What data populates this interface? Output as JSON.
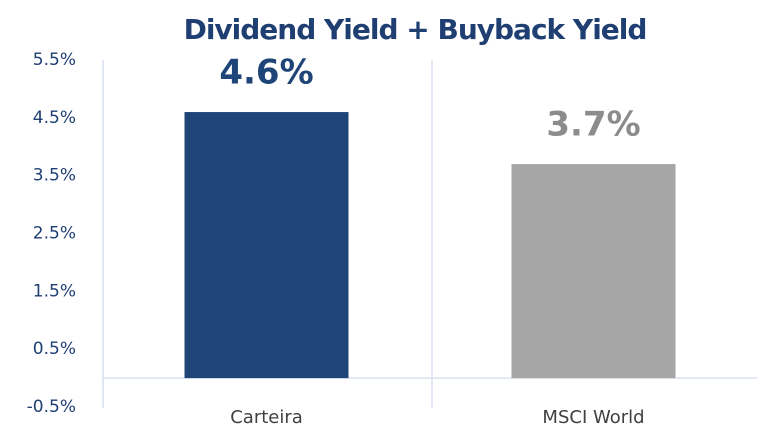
{
  "chart_data": {
    "type": "bar",
    "title": "Dividend Yield + Buyback Yield",
    "categories": [
      "Carteira",
      "MSCI World"
    ],
    "values": [
      4.6,
      3.7
    ],
    "value_labels": [
      "4.6%",
      "3.7%"
    ],
    "colors": [
      "#1f4578",
      "#a6a6a6"
    ],
    "ylim": [
      -0.5,
      5.5
    ],
    "yticks": [
      {
        "value": -0.5,
        "label": "-0.5%"
      },
      {
        "value": 0.5,
        "label": "0.5%"
      },
      {
        "value": 1.5,
        "label": "1.5%"
      },
      {
        "value": 2.5,
        "label": "2.5%"
      },
      {
        "value": 3.5,
        "label": "3.5%"
      },
      {
        "value": 4.5,
        "label": "4.5%"
      },
      {
        "value": 5.5,
        "label": "5.5%"
      }
    ],
    "grid": false
  }
}
